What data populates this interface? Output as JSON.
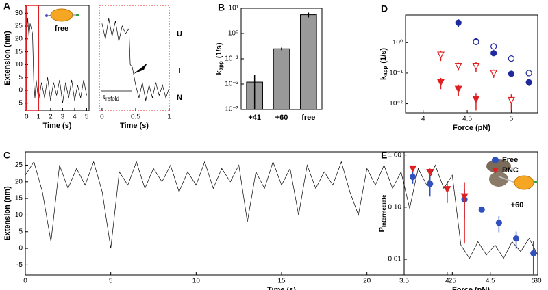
{
  "chart_data": [
    {
      "type": "line",
      "panel": "A",
      "x_label": "Time (s)",
      "y_label": "Extension (nm)",
      "annotation": "free",
      "x": [
        0,
        0.1,
        0.2,
        0.3,
        0.4,
        0.5,
        0.6,
        0.7,
        0.8,
        1,
        1.25,
        1.5,
        1.75,
        2,
        2.25,
        2.5,
        2.75,
        3,
        3.25,
        3.5,
        3.75,
        4,
        4.25,
        4.5,
        4.75,
        5
      ],
      "series": [
        {
          "color": "#000000",
          "values": [
            23,
            28,
            21,
            26,
            24,
            22,
            3,
            -3,
            4,
            -4,
            3,
            -3,
            5,
            -4,
            3,
            -2,
            4,
            -5,
            3,
            -3,
            4,
            -4,
            2,
            -3,
            4,
            -2
          ]
        }
      ],
      "xlim": [
        -0.1,
        5.2
      ],
      "xticks": [
        0,
        1,
        2,
        3,
        4,
        5
      ],
      "ylim": [
        -8,
        33
      ],
      "yticks": [
        -5,
        0,
        5,
        10,
        15,
        20,
        25,
        30
      ]
    },
    {
      "type": "line",
      "x_label": "Time (s)",
      "state_labels": [
        "U",
        "I",
        "N"
      ],
      "annotation": "τ",
      "annotation_sub": "refold",
      "frame_color": "#e02020",
      "x": [
        0,
        0.05,
        0.1,
        0.15,
        0.2,
        0.25,
        0.3,
        0.35,
        0.4,
        0.42,
        0.45,
        0.5,
        0.55,
        0.6,
        0.65,
        0.7,
        0.75,
        0.8,
        0.85,
        0.9,
        0.95,
        1
      ],
      "series": [
        {
          "color": "#000000",
          "values": [
            26,
            20,
            28,
            21,
            27,
            19,
            25,
            22,
            24,
            10,
            9,
            2,
            -3,
            3,
            -4,
            2,
            -3,
            3,
            -2,
            2,
            -3,
            1
          ]
        }
      ],
      "xlim": [
        -0.04,
        1
      ],
      "xticks": [
        0,
        0.5,
        1
      ],
      "ylim": [
        -8,
        33
      ]
    },
    {
      "type": "bar",
      "panel": "B",
      "y_label": "k",
      "y_label_sub": "app",
      "y_label_unit": "(1/s)",
      "log_y": true,
      "categories": [
        "+41",
        "+60",
        "free"
      ],
      "values": [
        0.012,
        0.25,
        5.5
      ],
      "errors": [
        0.011,
        0.03,
        1.2
      ],
      "color": "#999999",
      "ylim": [
        0.001,
        10
      ],
      "yticks": [
        {
          "value": 0.001,
          "label": "10⁻³"
        },
        {
          "value": 0.01,
          "label": "10⁻²"
        },
        {
          "value": 0.1,
          "label": "10⁻¹"
        },
        {
          "value": 1,
          "label": "10⁰"
        },
        {
          "value": 10,
          "label": "10¹"
        }
      ]
    },
    {
      "type": "line",
      "panel": "C",
      "x_label": "Time (s)",
      "y_label": "Extension (nm)",
      "annotation": "+60",
      "x": [
        0,
        0.5,
        1,
        1.5,
        2,
        2.5,
        3,
        3.5,
        4,
        4.5,
        5,
        5.5,
        6,
        6.5,
        7,
        7.5,
        8,
        8.5,
        9,
        9.5,
        10,
        10.5,
        11,
        11.5,
        12,
        12.5,
        13,
        13.5,
        14,
        14.5,
        15,
        15.5,
        16,
        16.5,
        17,
        17.5,
        18,
        18.5,
        19,
        19.5,
        20,
        20.5,
        21,
        21.5,
        22,
        22.5,
        23,
        23.5,
        24,
        24.5,
        25,
        25.5,
        26,
        26.5,
        27,
        27.5,
        28,
        28.5,
        29,
        29.5,
        30
      ],
      "series": [
        {
          "color": "#000000",
          "values": [
            22,
            26,
            17,
            2,
            25,
            18,
            24,
            19,
            26,
            17,
            0,
            23,
            19,
            26,
            18,
            24,
            20,
            25,
            17,
            23,
            19,
            26,
            18,
            24,
            20,
            25,
            8,
            23,
            18,
            26,
            19,
            24,
            10,
            25,
            18,
            23,
            19,
            26,
            17,
            10,
            24,
            19,
            25,
            18,
            23,
            12,
            24,
            19,
            25,
            18,
            22,
            1,
            -3,
            2,
            -2,
            1,
            -3,
            2,
            -1,
            3,
            -2
          ]
        }
      ],
      "xlim": [
        0,
        30
      ],
      "xticks": [
        0,
        5,
        10,
        15,
        20,
        25,
        30
      ],
      "ylim": [
        -8,
        29
      ],
      "yticks": [
        -5,
        0,
        5,
        10,
        15,
        20,
        25
      ]
    },
    {
      "type": "scatter",
      "panel": "D",
      "x_label": "Force (pN)",
      "y_label": "k",
      "y_label_sub": "app",
      "y_label_unit": "(1/s)",
      "log_y": true,
      "series": [
        {
          "color": "#1f2a9c",
          "marker": "circle",
          "filled": true,
          "x": [
            4.4,
            4.6,
            4.8,
            5.0,
            5.2
          ],
          "values": [
            4.5,
            1.1,
            0.45,
            0.095,
            0.05
          ],
          "errors": [
            1.3,
            0.2,
            0.08,
            0.02,
            0.012
          ]
        },
        {
          "color": "#1f2a9c",
          "marker": "circle",
          "filled": false,
          "x": [
            4.6,
            4.8,
            5.0,
            5.2
          ],
          "values": [
            1.05,
            0.75,
            0.3,
            0.1
          ],
          "errors": [
            0.1,
            0.1,
            0.05,
            0.02
          ]
        },
        {
          "color": "#e02020",
          "marker": "triangle",
          "filled": true,
          "x": [
            4.2,
            4.4,
            4.6
          ],
          "values": [
            0.05,
            0.03,
            0.014
          ],
          "errors": [
            0.02,
            0.012,
            0.008
          ]
        },
        {
          "color": "#e02020",
          "marker": "triangle",
          "filled": false,
          "x": [
            4.2,
            4.4,
            4.6,
            4.8,
            5.0
          ],
          "values": [
            0.4,
            0.17,
            0.17,
            0.1,
            0.013
          ],
          "errors": [
            0.15,
            0.05,
            0.06,
            0.03,
            0.007
          ]
        }
      ],
      "xlim": [
        3.8,
        5.3
      ],
      "xticks": [
        4,
        4.5,
        5
      ],
      "ylim": [
        0.005,
        8
      ],
      "yticks": [
        {
          "value": 0.01,
          "label": "10⁻²"
        },
        {
          "value": 0.1,
          "label": "10⁻¹"
        },
        {
          "value": 1,
          "label": "10⁰"
        }
      ]
    },
    {
      "type": "scatter",
      "panel": "E",
      "x_label": "Force (pN)",
      "y_label": "P",
      "y_label_sub": "Intermediate",
      "log_y": true,
      "legend": "upper right",
      "series": [
        {
          "name": "Free",
          "color": "#3050c0",
          "marker": "circle",
          "filled": true,
          "x": [
            3.6,
            3.8,
            4.2,
            4.4,
            4.6,
            4.8,
            5.0
          ],
          "values": [
            0.38,
            0.28,
            0.14,
            0.09,
            0.05,
            0.025,
            0.013
          ],
          "errors": [
            0.1,
            0.12,
            0.08,
            0.008,
            0.017,
            0.009,
            0.009
          ]
        },
        {
          "name": "RNC",
          "color": "#e02020",
          "marker": "triangle",
          "filled": true,
          "x": [
            3.6,
            3.8,
            4.0,
            4.2
          ],
          "values": [
            0.55,
            0.47,
            0.22,
            0.16
          ],
          "errors": [
            0.05,
            0.08,
            0.1,
            0.14
          ]
        }
      ],
      "xlim": [
        3.5,
        5.05
      ],
      "xticks": [
        3.5,
        4,
        4.5,
        5
      ],
      "ylim": [
        0.005,
        1.15
      ],
      "yticks": [
        {
          "value": 0.01,
          "label": "0.01"
        },
        {
          "value": 0.1,
          "label": "0.10"
        },
        {
          "value": 1,
          "label": "1.00"
        }
      ]
    }
  ]
}
